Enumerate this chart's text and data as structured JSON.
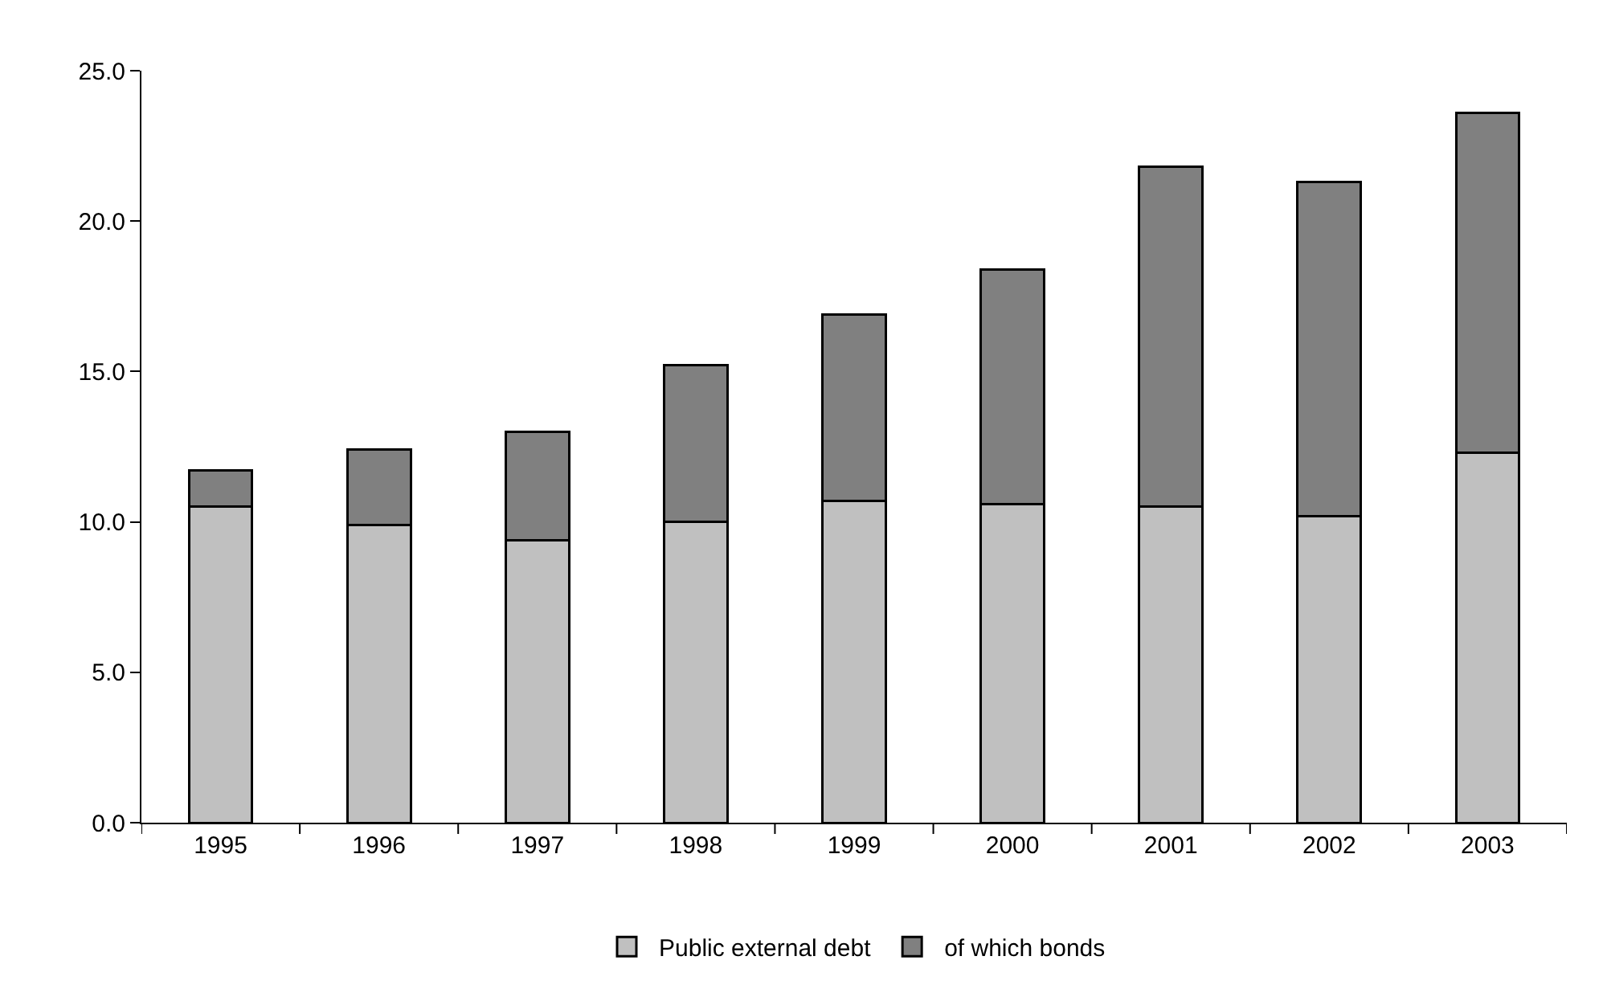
{
  "chart_data": {
    "type": "bar",
    "stacked": true,
    "categories": [
      "1995",
      "1996",
      "1997",
      "1998",
      "1999",
      "2000",
      "2001",
      "2002",
      "2003"
    ],
    "series": [
      {
        "name": "Public external debt",
        "color": "#c0c0c0",
        "values": [
          10.5,
          9.9,
          9.4,
          10.0,
          10.7,
          10.6,
          10.5,
          10.2,
          12.3
        ]
      },
      {
        "name": "of which bonds",
        "color": "#808080",
        "values": [
          1.2,
          2.5,
          3.6,
          5.2,
          6.2,
          7.8,
          11.3,
          11.1,
          11.3
        ]
      }
    ],
    "ylim": [
      0,
      25
    ],
    "yticks": [
      {
        "value": 0,
        "label": "0.0"
      },
      {
        "value": 5,
        "label": "5.0"
      },
      {
        "value": 10,
        "label": "10.0"
      },
      {
        "value": 15,
        "label": "15.0"
      },
      {
        "value": 20,
        "label": "20.0"
      },
      {
        "value": 25,
        "label": "25.0"
      }
    ],
    "legend": "bottom"
  }
}
